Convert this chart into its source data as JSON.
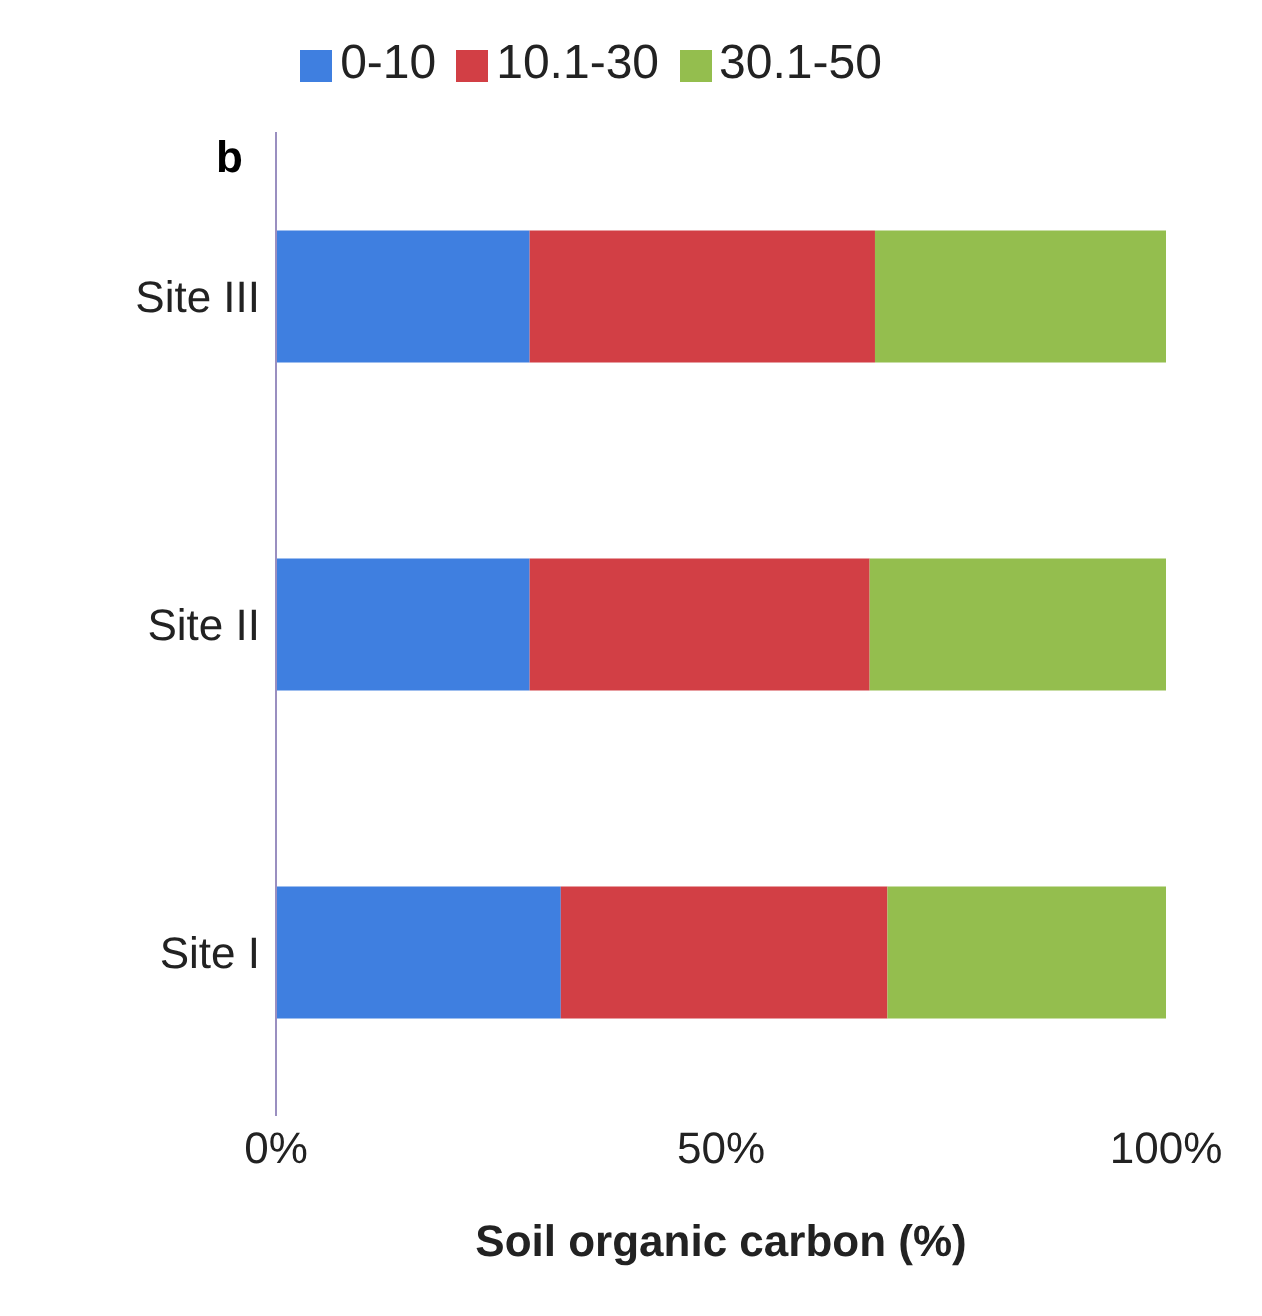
{
  "chart_data": {
    "type": "bar",
    "orientation": "horizontal",
    "stacked": true,
    "xlabel": "Soil organic carbon (%)",
    "annotations": [
      "b"
    ],
    "categories": [
      "Site III",
      "Site II",
      "Site I"
    ],
    "series": [
      {
        "name": "0-10",
        "color": "#3f7fe0",
        "values": [
          28.5,
          28.5,
          32
        ]
      },
      {
        "name": "10.1-30",
        "color": "#d23f45",
        "values": [
          38.8,
          38.2,
          36.7
        ]
      },
      {
        "name": "30.1-50",
        "color": "#94be4e",
        "values": [
          32.7,
          33.3,
          31.3
        ]
      }
    ],
    "xlim": [
      0,
      100
    ],
    "xticks": [
      {
        "value": 0,
        "label": "0%"
      },
      {
        "value": 50,
        "label": "50%"
      },
      {
        "value": 100,
        "label": "100%"
      }
    ],
    "grid": false,
    "legend": "top"
  }
}
